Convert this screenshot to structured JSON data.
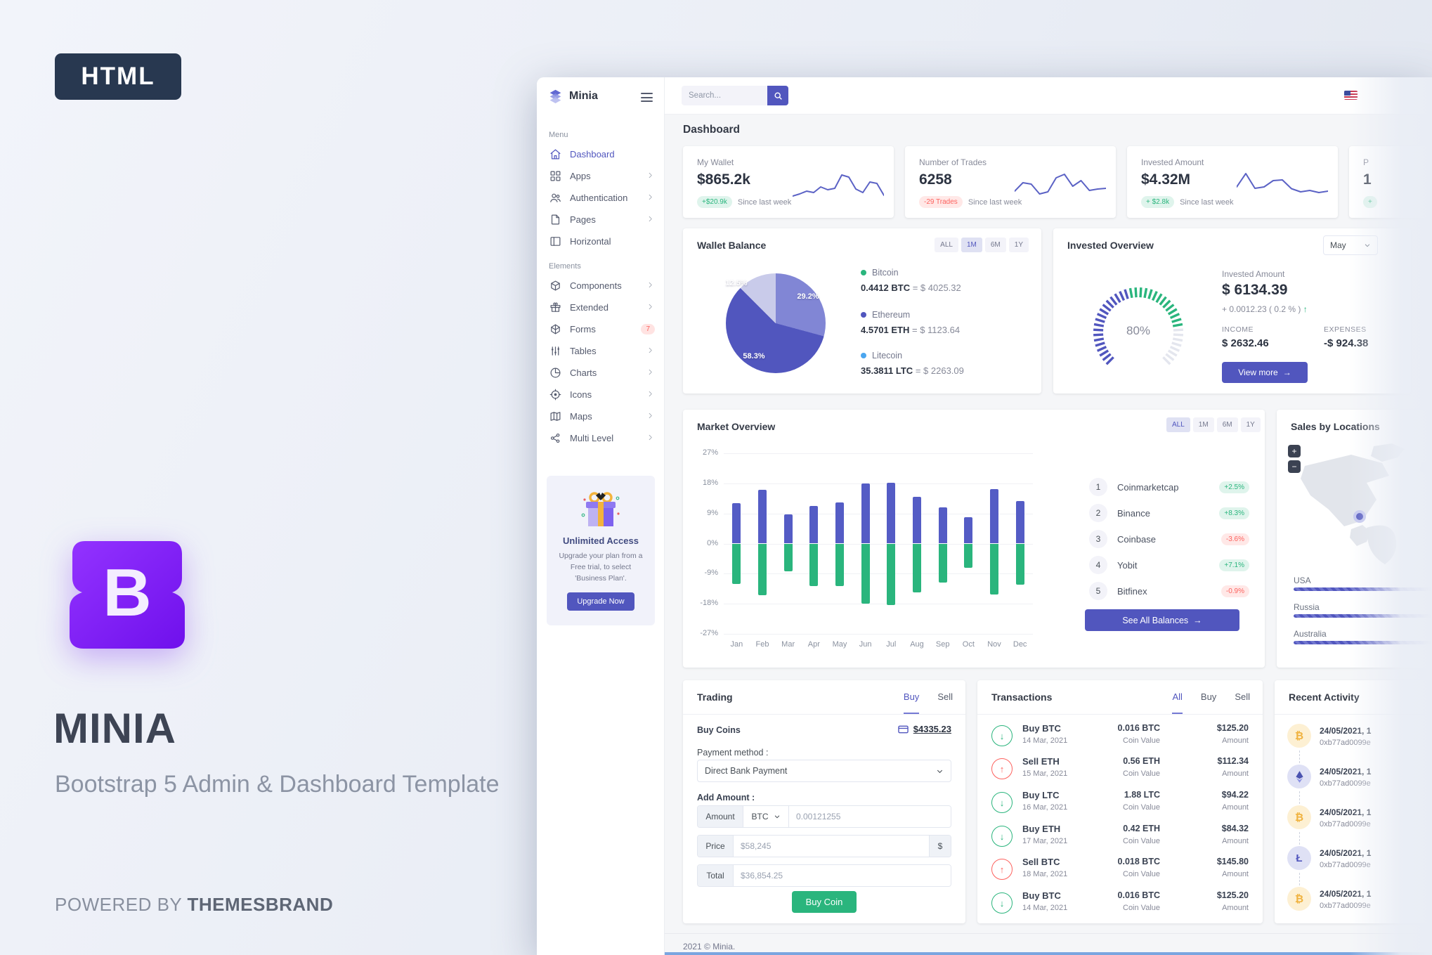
{
  "icons": {
    "arrow_right": "→",
    "arrow_up": "↑",
    "arrow_down": "↓"
  },
  "promo": {
    "badge": "HTML",
    "logo_letter": "B",
    "title": "MINIA",
    "subtitle": "Bootstrap 5 Admin & Dashboard Template",
    "powered_prefix": "POWERED BY ",
    "powered_brand": "THEMESBRAND"
  },
  "sidebar": {
    "brand": "Minia",
    "sections": [
      {
        "label": "Menu",
        "items": [
          {
            "label": "Dashboard",
            "icon": "home-icon",
            "active": true
          },
          {
            "label": "Apps",
            "icon": "grid-icon",
            "chevron": true
          },
          {
            "label": "Authentication",
            "icon": "users-icon",
            "chevron": true
          },
          {
            "label": "Pages",
            "icon": "file-icon",
            "chevron": true
          },
          {
            "label": "Horizontal",
            "icon": "layout-icon"
          }
        ]
      },
      {
        "label": "Elements",
        "items": [
          {
            "label": "Components",
            "icon": "package-icon",
            "chevron": true
          },
          {
            "label": "Extended",
            "icon": "gift-icon",
            "chevron": true
          },
          {
            "label": "Forms",
            "icon": "cube-icon",
            "badge": "7"
          },
          {
            "label": "Tables",
            "icon": "sliders-icon",
            "chevron": true
          },
          {
            "label": "Charts",
            "icon": "pie-chart-icon",
            "chevron": true
          },
          {
            "label": "Icons",
            "icon": "target-icon",
            "chevron": true
          },
          {
            "label": "Maps",
            "icon": "map-icon",
            "chevron": true
          },
          {
            "label": "Multi Level",
            "icon": "share-icon",
            "chevron": true
          }
        ]
      }
    ],
    "upgrade": {
      "title": "Unlimited Access",
      "text": "Upgrade your plan from a Free trial, to select 'Business Plan'.",
      "button": "Upgrade Now"
    }
  },
  "topbar": {
    "search_placeholder": "Search...",
    "flag": "us-flag"
  },
  "page": {
    "title": "Dashboard",
    "footer": "2021 © Minia."
  },
  "stats": [
    {
      "label": "My Wallet",
      "value": "$865.2k",
      "badge": "+$20.9k",
      "trend": "up",
      "note": "Since last week",
      "spark": [
        14,
        20,
        28,
        24,
        40,
        32,
        36,
        74,
        68,
        34,
        24,
        54,
        50,
        16
      ]
    },
    {
      "label": "Number of Trades",
      "value": "6258",
      "badge": "-29 Trades",
      "trend": "down",
      "note": "Since last week",
      "spark": [
        28,
        52,
        48,
        20,
        26,
        66,
        76,
        42,
        58,
        30,
        34,
        36
      ]
    },
    {
      "label": "Invested Amount",
      "value": "$4.32M",
      "badge": "+ $2.8k",
      "trend": "up",
      "note": "Since last week",
      "spark": [
        40,
        78,
        36,
        40,
        58,
        60,
        35,
        26,
        30,
        24,
        28
      ]
    },
    {
      "label": "P",
      "value": "1",
      "badge": "+",
      "trend": "up",
      "note": "",
      "spark": [
        30,
        44,
        38,
        52,
        46,
        60,
        50,
        42,
        55,
        40,
        45
      ]
    }
  ],
  "wallet_balance": {
    "title": "Wallet Balance",
    "filters": [
      {
        "label": "ALL"
      },
      {
        "label": "1M",
        "active": true
      },
      {
        "label": "6M"
      },
      {
        "label": "1Y"
      }
    ],
    "chart_data": {
      "type": "pie",
      "slices": [
        {
          "label": "29.2%",
          "value": 29.2,
          "color": "#8186d5"
        },
        {
          "label": "58.3%",
          "value": 58.3,
          "color": "#5156be"
        },
        {
          "label": "12.5%",
          "value": 12.5,
          "color": "#c9cbea"
        }
      ]
    },
    "legend": [
      {
        "name": "Bitcoin",
        "dot": "#2ab57d",
        "amount": "0.4412 BTC",
        "value": "= $ 4025.32"
      },
      {
        "name": "Ethereum",
        "dot": "#5156be",
        "amount": "4.5701 ETH",
        "value": "= $ 1123.64"
      },
      {
        "name": "Litecoin",
        "dot": "#4ba6ef",
        "amount": "35.3811 LTC",
        "value": "= $ 2263.09"
      }
    ]
  },
  "invested_overview": {
    "title": "Invested Overview",
    "select": "May",
    "gauge_label": "80%",
    "gauge_percent": 80,
    "amount_label": "Invested Amount",
    "amount": "$ 6134.39",
    "change": "+ 0.0012.23 ( 0.2 % )",
    "income_label": "INCOME",
    "income": "$ 2632.46",
    "expenses_label": "EXPENSES",
    "expenses": "-$ 924.38",
    "button": "View more"
  },
  "market_overview": {
    "title": "Market Overview",
    "filters": [
      {
        "label": "ALL",
        "active": true
      },
      {
        "label": "1M"
      },
      {
        "label": "6M"
      },
      {
        "label": "1Y"
      }
    ],
    "chart_data": {
      "type": "bar",
      "title": "Market Overview",
      "categories": [
        "Jan",
        "Feb",
        "Mar",
        "Apr",
        "May",
        "Jun",
        "Jul",
        "Aug",
        "Sep",
        "Oct",
        "Nov",
        "Dec"
      ],
      "series": [
        {
          "name": "positive",
          "color": "#545cc5",
          "values": [
            12,
            16,
            8.8,
            11.3,
            12.3,
            18,
            18.2,
            14,
            10.8,
            7.8,
            16.2,
            12.8
          ]
        },
        {
          "name": "negative",
          "color": "#2ab57d",
          "values": [
            -12,
            -15.5,
            -8.2,
            -12.8,
            -12.8,
            -18,
            -18.3,
            -14.6,
            -11.6,
            -7.3,
            -15.3,
            -12.3
          ]
        }
      ],
      "ylim": [
        -27,
        27
      ],
      "yticks": [
        "27%",
        "18%",
        "9%",
        "0%",
        "-9%",
        "-18%",
        "-27%"
      ],
      "ytick_values": [
        27,
        18,
        9,
        0,
        -9,
        -18,
        -27
      ],
      "grid": true,
      "legend_position": "none"
    },
    "exchanges": [
      {
        "rank": "1",
        "name": "Coinmarketcap",
        "change": "+2.5%",
        "dir": "up"
      },
      {
        "rank": "2",
        "name": "Binance",
        "change": "+8.3%",
        "dir": "up"
      },
      {
        "rank": "3",
        "name": "Coinbase",
        "change": "-3.6%",
        "dir": "down"
      },
      {
        "rank": "4",
        "name": "Yobit",
        "change": "+7.1%",
        "dir": "up"
      },
      {
        "rank": "5",
        "name": "Bitfinex",
        "change": "-0.9%",
        "dir": "down"
      }
    ],
    "button": "See All Balances"
  },
  "sales_by_locations": {
    "title": "Sales by Locations",
    "zoom_in": "+",
    "zoom_out": "−",
    "locations": [
      {
        "name": "USA"
      },
      {
        "name": "Russia"
      },
      {
        "name": "Australia"
      }
    ]
  },
  "trading": {
    "title": "Trading",
    "tabs": [
      {
        "label": "Buy",
        "active": true
      },
      {
        "label": "Sell"
      }
    ],
    "buy_coins_label": "Buy Coins",
    "balance": "$4335.23",
    "payment_label": "Payment method :",
    "payment_method": "Direct Bank Payment",
    "add_amount_label": "Add Amount :",
    "amount_label": "Amount",
    "currency": "BTC",
    "amount_placeholder": "0.00121255",
    "price_label": "Price",
    "price_placeholder": "$58,245",
    "price_suffix": "$",
    "total_label": "Total",
    "total_placeholder": "$36,854.25",
    "button": "Buy Coin"
  },
  "transactions": {
    "title": "Transactions",
    "tabs": [
      {
        "label": "All",
        "active": true
      },
      {
        "label": "Buy"
      },
      {
        "label": "Sell"
      }
    ],
    "col_labels": {
      "coin": "Coin Value",
      "amount": "Amount"
    },
    "rows": [
      {
        "name": "Buy BTC",
        "date": "14 Mar, 2021",
        "dir": "buy",
        "coin": "0.016 BTC",
        "amount": "$125.20"
      },
      {
        "name": "Sell ETH",
        "date": "15 Mar, 2021",
        "dir": "sell",
        "coin": "0.56 ETH",
        "amount": "$112.34"
      },
      {
        "name": "Buy LTC",
        "date": "16 Mar, 2021",
        "dir": "buy",
        "coin": "1.88 LTC",
        "amount": "$94.22"
      },
      {
        "name": "Buy ETH",
        "date": "17 Mar, 2021",
        "dir": "buy",
        "coin": "0.42 ETH",
        "amount": "$84.32"
      },
      {
        "name": "Sell BTC",
        "date": "18 Mar, 2021",
        "dir": "sell",
        "coin": "0.018 BTC",
        "amount": "$145.80"
      },
      {
        "name": "Buy BTC",
        "date": "14 Mar, 2021",
        "dir": "buy",
        "coin": "0.016 BTC",
        "amount": "$125.20"
      }
    ]
  },
  "recent_activity": {
    "title": "Recent Activity",
    "items": [
      {
        "coin": "bitcoin-icon",
        "date": "24/05/2021, 1",
        "hash": "0xb77ad0099e"
      },
      {
        "coin": "ethereum-icon",
        "date": "24/05/2021, 1",
        "hash": "0xb77ad0099e"
      },
      {
        "coin": "bitcoin-icon",
        "date": "24/05/2021, 1",
        "hash": "0xb77ad0099e"
      },
      {
        "coin": "litecoin-icon",
        "date": "24/05/2021, 1",
        "hash": "0xb77ad0099e"
      },
      {
        "coin": "bitcoin-icon",
        "date": "24/05/2021, 1",
        "hash": "0xb77ad0099e"
      }
    ]
  },
  "colors": {
    "primary": "#5156be",
    "green": "#2ab57d",
    "red": "#fd625e",
    "amber": "#f0b23e",
    "bar_positive": "#545cc5",
    "bar_negative": "#2ab57d"
  }
}
